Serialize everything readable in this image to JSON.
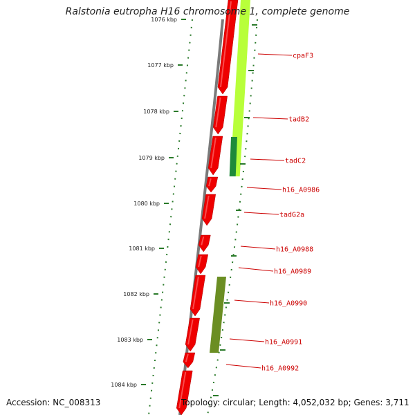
{
  "title": "Ralstonia eutropha H16 chromosome 1, complete genome",
  "accession": "Accession: NC_008313",
  "summary": "Topology: circular; Length: 4,052,032 bp; Genes: 3,711",
  "colors": {
    "backbone": "#7a7a7a",
    "gene_forward": "#ee0000",
    "feature_lime": "#b8ff3a",
    "feature_green": "#1e8a3a",
    "feature_olive": "#6b8e23",
    "tick": "#2a7a2a",
    "label": "#cc0000"
  },
  "scale": {
    "unit": "kbp",
    "ticks": [
      "1076 kbp",
      "1077 kbp",
      "1078 kbp",
      "1079 kbp",
      "1080 kbp",
      "1081 kbp",
      "1082 kbp",
      "1083 kbp",
      "1084 kbp"
    ]
  },
  "gene_labels": [
    "cpaF3",
    "tadB2",
    "tadC2",
    "h16_A0986",
    "tadG2a",
    "h16_A0988",
    "h16_A0989",
    "h16_A0990",
    "h16_A0991",
    "h16_A0992"
  ]
}
